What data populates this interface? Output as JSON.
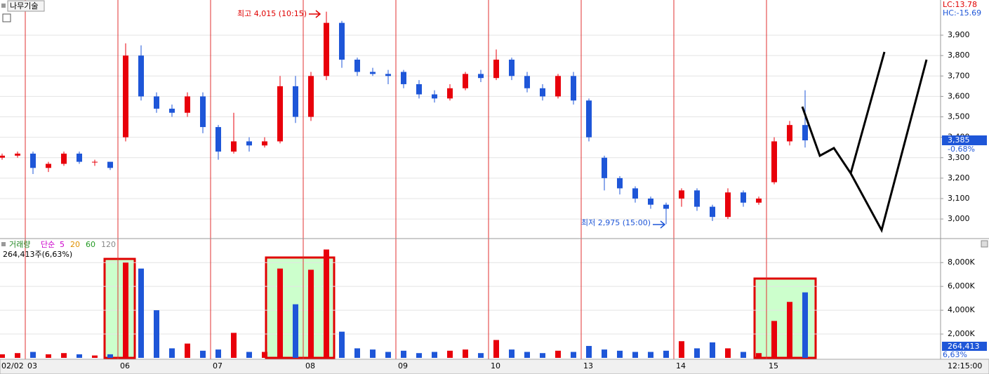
{
  "chart_data": [
    {
      "type": "candlestick",
      "title": "나무기술",
      "open": [
        3300,
        3310,
        3320,
        3250,
        3270,
        3320,
        3280,
        3280,
        3400,
        3800,
        3600,
        3540,
        3520,
        3600,
        3450,
        3330,
        3380,
        3360,
        3380,
        3650,
        3500,
        3700,
        3960,
        3780,
        3720,
        3710,
        3720,
        3660,
        3610,
        3590,
        3640,
        3710,
        3690,
        3780,
        3700,
        3640,
        3600,
        3700,
        3580,
        3300,
        3200,
        3150,
        3100,
        3070,
        3100,
        3140,
        3060,
        3010,
        3130,
        3080,
        3180,
        3380,
        3460
      ],
      "high": [
        3320,
        3330,
        3330,
        3280,
        3330,
        3330,
        3290,
        3280,
        3860,
        3850,
        3620,
        3560,
        3620,
        3620,
        3460,
        3520,
        3400,
        3400,
        3700,
        3700,
        3720,
        4015,
        3970,
        3790,
        3740,
        3730,
        3730,
        3680,
        3630,
        3660,
        3720,
        3730,
        3830,
        3790,
        3720,
        3660,
        3710,
        3720,
        3590,
        3310,
        3210,
        3160,
        3110,
        3080,
        3150,
        3150,
        3070,
        3150,
        3140,
        3110,
        3400,
        3480,
        3630
      ],
      "low": [
        3290,
        3300,
        3220,
        3230,
        3260,
        3270,
        3260,
        3240,
        3380,
        3580,
        3520,
        3500,
        3500,
        3420,
        3290,
        3320,
        3330,
        3350,
        3370,
        3470,
        3480,
        3680,
        3740,
        3700,
        3700,
        3660,
        3640,
        3590,
        3570,
        3580,
        3630,
        3670,
        3680,
        3680,
        3620,
        3580,
        3590,
        3560,
        3380,
        3140,
        3120,
        3080,
        3050,
        2975,
        3060,
        3040,
        2990,
        3000,
        3060,
        3070,
        3170,
        3360,
        3350
      ],
      "close": [
        3310,
        3320,
        3250,
        3270,
        3320,
        3280,
        3280,
        3250,
        3800,
        3600,
        3540,
        3520,
        3600,
        3450,
        3330,
        3380,
        3360,
        3380,
        3650,
        3500,
        3700,
        3960,
        3780,
        3720,
        3710,
        3700,
        3660,
        3610,
        3590,
        3640,
        3710,
        3690,
        3780,
        3700,
        3640,
        3600,
        3700,
        3580,
        3400,
        3200,
        3150,
        3100,
        3070,
        3050,
        3140,
        3060,
        3010,
        3130,
        3080,
        3100,
        3380,
        3460,
        3385
      ],
      "up_color": "#e8000b",
      "down_color": "#1e56d8",
      "ylim": [
        2911,
        4072
      ],
      "yticks": [
        {
          "value": 3000,
          "label": "3,000"
        },
        {
          "value": 3100,
          "label": "3,100"
        },
        {
          "value": 3200,
          "label": "3,200"
        },
        {
          "value": 3300,
          "label": "3,300"
        },
        {
          "value": 3400,
          "label": "3,400"
        },
        {
          "value": 3500,
          "label": "3,500"
        },
        {
          "value": 3600,
          "label": "3,600"
        },
        {
          "value": 3700,
          "label": "3,700"
        },
        {
          "value": 3800,
          "label": "3,800"
        },
        {
          "value": 3900,
          "label": "3,900"
        }
      ],
      "grid": true,
      "high_annotation": "최고 4,015 (10:15)",
      "low_annotation": "최저 2,975 (15:00)",
      "last_value_label": "3,385",
      "last_change_label": "-0.68%",
      "lc_label": "LC:13.78",
      "hc_label": "HC:-15.69"
    },
    {
      "type": "bar",
      "title": "거래량",
      "categories": [
        "02/02",
        null,
        "03",
        null,
        null,
        null,
        null,
        null,
        "06",
        null,
        null,
        null,
        null,
        null,
        "07",
        null,
        null,
        null,
        null,
        null,
        "08",
        null,
        null,
        null,
        null,
        null,
        "09",
        null,
        null,
        null,
        null,
        null,
        "10",
        null,
        null,
        null,
        null,
        null,
        "13",
        null,
        null,
        null,
        null,
        null,
        "14",
        null,
        null,
        null,
        null,
        null,
        "15",
        null,
        null
      ],
      "values": [
        300,
        400,
        500,
        300,
        400,
        300,
        200,
        300,
        8000,
        7500,
        4000,
        800,
        1200,
        600,
        700,
        2100,
        500,
        500,
        7500,
        4500,
        7400,
        9100,
        2200,
        800,
        700,
        500,
        600,
        400,
        500,
        600,
        700,
        400,
        1500,
        700,
        500,
        400,
        600,
        500,
        1000,
        700,
        600,
        500,
        500,
        600,
        1400,
        800,
        1300,
        800,
        500,
        400,
        3100,
        4700,
        5500
      ],
      "ylim": [
        0,
        9900
      ],
      "yticks": [
        {
          "value": 2000,
          "label": "2,000K"
        },
        {
          "value": 4000,
          "label": "4,000K"
        },
        {
          "value": 6000,
          "label": "6,000K"
        },
        {
          "value": 8000,
          "label": "8,000K"
        }
      ],
      "ma_label": "단순",
      "ma_periods": [
        {
          "label": "5",
          "color": "#cc00cc"
        },
        {
          "label": "20",
          "color": "#e09000"
        },
        {
          "label": "60",
          "color": "#229922"
        },
        {
          "label": "120",
          "color": "#888888"
        }
      ],
      "summary_label": "264,413주(6,63%)",
      "last_volume_label": "264,413",
      "last_ratio_label": "6,63%",
      "time_label": "12:15:00"
    }
  ]
}
